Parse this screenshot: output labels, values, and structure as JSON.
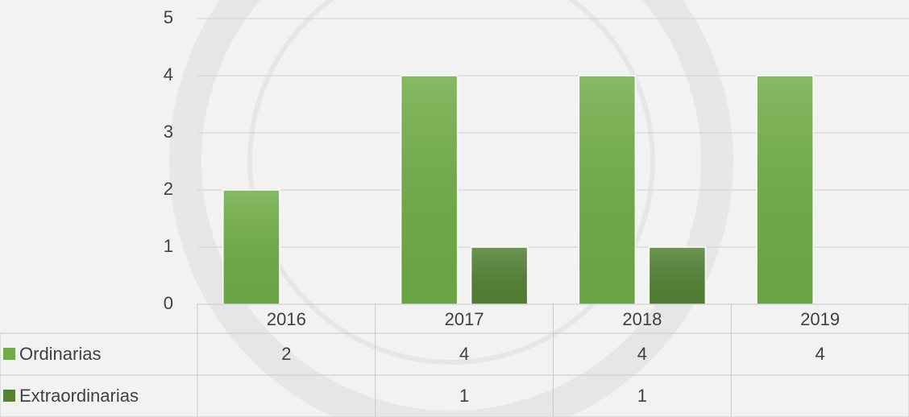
{
  "chart_data": {
    "type": "bar",
    "categories": [
      "2016",
      "2017",
      "2018",
      "2019"
    ],
    "series": [
      {
        "name": "Ordinarias",
        "color": "#70ad47",
        "values": [
          2,
          4,
          4,
          4
        ]
      },
      {
        "name": "Extraordinarias",
        "color": "#548235",
        "values": [
          null,
          1,
          1,
          null
        ]
      }
    ],
    "ylim": [
      0,
      5
    ],
    "yticks": [
      0,
      1,
      2,
      3,
      4,
      5
    ],
    "grid": true,
    "data_table": true
  }
}
